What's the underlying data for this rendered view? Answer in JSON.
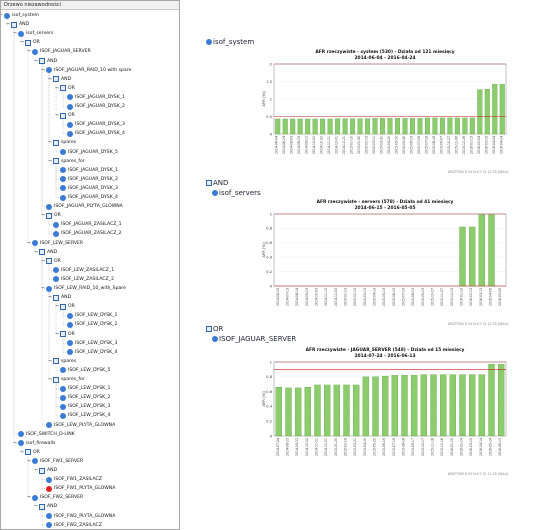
{
  "tree": {
    "title": "Drzewo niezawodności",
    "items": [
      {
        "label": "isof_system",
        "level": 0,
        "icon": "service",
        "toggle": "−"
      },
      {
        "label": "AND",
        "level": 1,
        "icon": "group",
        "toggle": "−"
      },
      {
        "label": "isof_servers",
        "level": 2,
        "icon": "service",
        "toggle": "−"
      },
      {
        "label": "OR",
        "level": 3,
        "icon": "group",
        "toggle": "−"
      },
      {
        "label": "ISOF_JAGUAR_SERVER",
        "level": 4,
        "icon": "service",
        "toggle": "−"
      },
      {
        "label": "AND",
        "level": 5,
        "icon": "group",
        "toggle": "−"
      },
      {
        "label": "ISOF_JAGUAR_RAID_10 with spare",
        "level": 6,
        "icon": "service",
        "toggle": "−"
      },
      {
        "label": "AND",
        "level": 7,
        "icon": "group",
        "toggle": "−"
      },
      {
        "label": "OR",
        "level": 8,
        "icon": "group",
        "toggle": "−"
      },
      {
        "label": "ISOF_JAGUAR_DYSK_1",
        "level": 9,
        "icon": "service",
        "toggle": ""
      },
      {
        "label": "ISOF_JAGUAR_DYSK_2",
        "level": 9,
        "icon": "service",
        "toggle": ""
      },
      {
        "label": "OR",
        "level": 8,
        "icon": "group",
        "toggle": "−"
      },
      {
        "label": "ISOF_JAGUAR_DYSK_3",
        "level": 9,
        "icon": "service",
        "toggle": ""
      },
      {
        "label": "ISOF_JAGUAR_DYSK_4",
        "level": 9,
        "icon": "service",
        "toggle": ""
      },
      {
        "label": "spares",
        "level": 7,
        "icon": "group",
        "toggle": "−"
      },
      {
        "label": "ISOF_JAGUAR_DYSK_5",
        "level": 8,
        "icon": "service",
        "toggle": ""
      },
      {
        "label": "spares_for",
        "level": 7,
        "icon": "group",
        "toggle": "−"
      },
      {
        "label": "ISOF_JAGUAR_DYSK_1",
        "level": 8,
        "icon": "service",
        "toggle": ""
      },
      {
        "label": "ISOF_JAGUAR_DYSK_2",
        "level": 8,
        "icon": "service",
        "toggle": ""
      },
      {
        "label": "ISOF_JAGUAR_DYSK_3",
        "level": 8,
        "icon": "service",
        "toggle": ""
      },
      {
        "label": "ISOF_JAGUAR_DYSK_4",
        "level": 8,
        "icon": "service",
        "toggle": ""
      },
      {
        "label": "ISOF_JAGUAR_PLYTA_GLOWNA",
        "level": 6,
        "icon": "service",
        "toggle": ""
      },
      {
        "label": "OR",
        "level": 6,
        "icon": "group",
        "toggle": "−"
      },
      {
        "label": "ISOF_JAGUAR_ZASILACZ_1",
        "level": 7,
        "icon": "service",
        "toggle": ""
      },
      {
        "label": "ISOF_JAGUAR_ZASILACZ_2",
        "level": 7,
        "icon": "service",
        "toggle": ""
      },
      {
        "label": "ISOF_LEW_SERVER",
        "level": 4,
        "icon": "service",
        "toggle": "−"
      },
      {
        "label": "AND",
        "level": 5,
        "icon": "group",
        "toggle": "−"
      },
      {
        "label": "OR",
        "level": 6,
        "icon": "group",
        "toggle": "−"
      },
      {
        "label": "ISOF_LEW_ZASILACZ_1",
        "level": 7,
        "icon": "service",
        "toggle": ""
      },
      {
        "label": "ISOF_LEW_ZASILACZ_2",
        "level": 7,
        "icon": "service",
        "toggle": ""
      },
      {
        "label": "ISOF_LEW_RAID_10_with_Spare",
        "level": 6,
        "icon": "service",
        "toggle": "−"
      },
      {
        "label": "AND",
        "level": 7,
        "icon": "group",
        "toggle": "−"
      },
      {
        "label": "OR",
        "level": 8,
        "icon": "group",
        "toggle": "−"
      },
      {
        "label": "ISOF_LEW_DYSK_1",
        "level": 9,
        "icon": "service",
        "toggle": ""
      },
      {
        "label": "ISOF_LEW_DYSK_2",
        "level": 9,
        "icon": "service",
        "toggle": ""
      },
      {
        "label": "OR",
        "level": 8,
        "icon": "group",
        "toggle": "−"
      },
      {
        "label": "ISOF_LEW_DYSK_3",
        "level": 9,
        "icon": "service",
        "toggle": ""
      },
      {
        "label": "ISOF_LEW_DYSK_4",
        "level": 9,
        "icon": "service",
        "toggle": ""
      },
      {
        "label": "spares",
        "level": 7,
        "icon": "group",
        "toggle": "−"
      },
      {
        "label": "ISOF_LEW_DYSK_5",
        "level": 8,
        "icon": "service",
        "toggle": ""
      },
      {
        "label": "spares_for",
        "level": 7,
        "icon": "group",
        "toggle": "−"
      },
      {
        "label": "ISOF_LEW_DYSK_1",
        "level": 8,
        "icon": "service",
        "toggle": ""
      },
      {
        "label": "ISOF_LEW_DYSK_2",
        "level": 8,
        "icon": "service",
        "toggle": ""
      },
      {
        "label": "ISOF_LEW_DYSK_3",
        "level": 8,
        "icon": "service",
        "toggle": ""
      },
      {
        "label": "ISOF_LEW_DYSK_4",
        "level": 8,
        "icon": "service",
        "toggle": ""
      },
      {
        "label": "ISOF_LEW_PLYTA_GLOWNA",
        "level": 6,
        "icon": "service",
        "toggle": ""
      },
      {
        "label": "ISOF_SWITCH_D-LINK",
        "level": 2,
        "icon": "service",
        "toggle": ""
      },
      {
        "label": "isof_firewalls",
        "level": 2,
        "icon": "service",
        "toggle": "−"
      },
      {
        "label": "OR",
        "level": 3,
        "icon": "group",
        "toggle": "−"
      },
      {
        "label": "ISOF_FW1_SERVER",
        "level": 4,
        "icon": "service",
        "toggle": "−"
      },
      {
        "label": "AND",
        "level": 5,
        "icon": "group",
        "toggle": "−"
      },
      {
        "label": "ISOF_FW1_ZASILACZ",
        "level": 6,
        "icon": "service",
        "toggle": ""
      },
      {
        "label": "ISOF_FW1_PLYTA_GLOWNA",
        "level": 6,
        "icon": "error",
        "toggle": ""
      },
      {
        "label": "ISOF_FW2_SERVER",
        "level": 4,
        "icon": "service",
        "toggle": "−"
      },
      {
        "label": "AND",
        "level": 5,
        "icon": "group",
        "toggle": "−"
      },
      {
        "label": "ISOF_FW2_PLYTA_GLOWNA",
        "level": 6,
        "icon": "service",
        "toggle": ""
      },
      {
        "label": "ISOF_FW2_ZASILACZ",
        "level": 6,
        "icon": "service",
        "toggle": ""
      }
    ]
  },
  "main": {
    "sections": [
      {
        "label": "isof_system",
        "icon": "service"
      },
      {
        "label": "AND",
        "icon": "group"
      },
      {
        "label": "isof_servers",
        "icon": "service"
      },
      {
        "label": "OR",
        "icon": "group"
      },
      {
        "label": "ISOF_JAGUAR_SERVER",
        "icon": "service"
      }
    ]
  },
  "colors": {
    "bar_fill": "#8ccc6c",
    "bar_edge": "#4f9a36",
    "threshold_line": "#cc2222",
    "service_icon": "#3b7bd6",
    "error_icon": "#d22222"
  },
  "chart_data": [
    {
      "type": "bar",
      "title": "AFR rzeczywiste - system (530) - Działa od 121 miesięcy",
      "subtitle": "2014-06-04 - 2016-04-24",
      "ylabel": "AFR [%]",
      "ylim": [
        0,
        2
      ],
      "yticks": [
        "0",
        "0.5",
        "1",
        "1.5",
        "2"
      ],
      "threshold": 0.5,
      "footer": "WSZYTKIE 6 2014-07-31 12:35 [Wiku]",
      "categories": [
        "2014-06-04",
        "2014-06-24",
        "2014-08-03",
        "2014-08-23",
        "2014-09-12",
        "2014-10-02",
        "2014-10-22",
        "2014-11-11",
        "2014-12-01",
        "2014-12-21",
        "2015-01-10",
        "2015-01-30",
        "2015-02-19",
        "2015-03-11",
        "2015-03-31",
        "2015-04-20",
        "2015-05-10",
        "2015-05-30",
        "2015-06-19",
        "2015-07-09",
        "2015-07-29",
        "2015-08-18",
        "2015-09-07",
        "2015-10-27",
        "2015-11-06",
        "2015-12-26",
        "2016-01-15",
        "2016-02-04",
        "2016-03-15",
        "2016-04-04",
        "2016-04-24"
      ],
      "values": [
        0.43,
        0.43,
        0.43,
        0.43,
        0.43,
        0.43,
        0.43,
        0.43,
        0.44,
        0.44,
        0.44,
        0.44,
        0.44,
        0.45,
        0.45,
        0.45,
        0.45,
        0.45,
        0.45,
        0.45,
        0.46,
        0.46,
        0.46,
        0.46,
        0.46,
        0.46,
        0.46,
        1.27,
        1.28,
        1.42,
        1.42
      ]
    },
    {
      "type": "bar",
      "title": "AFR rzeczywiste - servers (578) - Działa od 41 miesięcy",
      "subtitle": "2014-06-15 - 2016-05-05",
      "ylabel": "AFR [%]",
      "ylim": [
        0,
        1
      ],
      "yticks": [
        "0",
        "0.2",
        "0.4",
        "0.6",
        "0.8",
        "1"
      ],
      "threshold": 0,
      "footer": "WSZYTKIE 6 2014-07-31 12:35 [Wiku]",
      "categories": [
        "2014-06-15",
        "2014-07-13",
        "2014-08-14",
        "2014-09-13",
        "2014-10-03",
        "2014-11-13",
        "2014-12-03",
        "2015-01-13",
        "2015-02-13",
        "2015-03-13",
        "2015-04-13",
        "2015-05-13",
        "2015-06-13",
        "2015-07-13",
        "2015-08-13",
        "2015-09-13",
        "2015-10-27",
        "2015-11-07",
        "2015-12-13",
        "2016-01-13",
        "2016-02-13",
        "2016-03-13",
        "2016-04-05",
        "2016-05-05"
      ],
      "values": [
        0,
        0,
        0,
        0,
        0,
        0,
        0,
        0,
        0,
        0,
        0,
        0,
        0,
        0,
        0,
        0,
        0,
        0,
        0,
        0.82,
        0.82,
        0.99,
        0.99,
        0
      ]
    },
    {
      "type": "bar",
      "title": "AFR rzeczywiste - JAGUAR_SERVER (548) - Działa od 15 miesięcy",
      "subtitle": "2014-07-24 - 2016-06-13",
      "ylabel": "AFR [%]",
      "ylim": [
        0,
        1
      ],
      "yticks": [
        "0",
        "0.2",
        "0.4",
        "0.6",
        "0.8",
        "1"
      ],
      "threshold": 0.9,
      "footer": "WSZYTKIE 6 2014-07-31 12:35 [Wiku]",
      "categories": [
        "2014-07-24",
        "2014-08-23",
        "2014-09-22",
        "2014-10-22",
        "2014-11-21",
        "2014-12-21",
        "2015-01-20",
        "2015-02-19",
        "2015-03-21",
        "2015-04-20",
        "2015-05-20",
        "2015-06-19",
        "2015-07-19",
        "2015-08-18",
        "2015-09-17",
        "2015-10-17",
        "2015-11-16",
        "2015-12-16",
        "2016-01-15",
        "2016-02-14",
        "2016-03-15",
        "2016-04-14",
        "2016-05-14",
        "2016-06-13"
      ],
      "values": [
        0.66,
        0.65,
        0.65,
        0.66,
        0.69,
        0.69,
        0.69,
        0.69,
        0.69,
        0.8,
        0.8,
        0.81,
        0.82,
        0.82,
        0.82,
        0.83,
        0.83,
        0.83,
        0.83,
        0.83,
        0.83,
        0.83,
        0.97,
        0.97
      ]
    }
  ]
}
